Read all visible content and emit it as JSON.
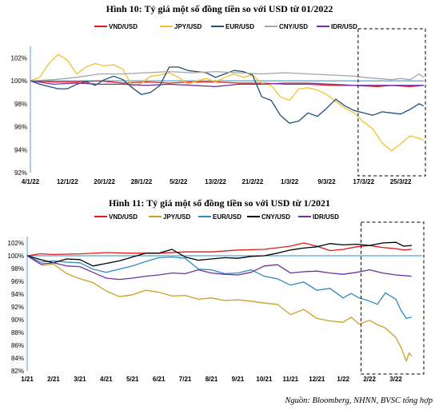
{
  "chart_data": [
    {
      "type": "line",
      "title": "Hình 10: Tỷ giá một số đồng tiền so với USD từ 01/2022",
      "x_tick_labels": [
        "4/1/22",
        "12/1/22",
        "20/1/22",
        "28/1/22",
        "5/2/22",
        "13/2/22",
        "21/2/22",
        "1/3/22",
        "9/3/22",
        "17/3/22",
        "25/3/22"
      ],
      "y_ticks": [
        "92%",
        "94%",
        "96%",
        "98%",
        "100%",
        "102%"
      ],
      "ylim": [
        92,
        103
      ],
      "reference_line": 100,
      "highlight_box": true,
      "series": [
        {
          "name": "VND/USD",
          "color": "#e31a1c",
          "x": [
            0,
            5,
            10,
            15,
            20,
            25,
            30,
            35,
            40,
            45,
            50,
            55,
            60,
            65,
            70,
            75,
            78,
            82,
            85
          ],
          "values": [
            100,
            99.9,
            99.9,
            100.0,
            99.8,
            99.9,
            99.8,
            99.9,
            99.9,
            99.8,
            99.8,
            99.7,
            99.7,
            99.6,
            99.6,
            99.5,
            99.6,
            99.5,
            99.6
          ]
        },
        {
          "name": "JPY/USD",
          "color": "#f2c12e",
          "x": [
            0,
            2,
            4,
            6,
            8,
            10,
            12,
            14,
            16,
            18,
            20,
            22,
            24,
            26,
            28,
            30,
            32,
            34,
            36,
            38,
            40,
            42,
            44,
            46,
            48,
            50,
            52,
            54,
            56,
            58,
            60,
            62,
            64,
            66,
            68,
            70,
            72,
            74,
            76,
            78,
            80,
            82,
            84,
            85
          ],
          "values": [
            100,
            100.3,
            101.5,
            102.3,
            101.8,
            100.6,
            101.2,
            101.5,
            101.3,
            101.4,
            101.0,
            99.5,
            99.8,
            100.4,
            100.5,
            100.7,
            100.3,
            99.7,
            100.0,
            100.2,
            99.9,
            100.3,
            100.6,
            100.3,
            100.5,
            99.8,
            99.6,
            98.6,
            98.3,
            99.3,
            99.4,
            99.2,
            98.8,
            98.2,
            97.6,
            97.2,
            96.4,
            95.8,
            94.6,
            93.9,
            94.5,
            95.2,
            95.0,
            94.8
          ]
        },
        {
          "name": "EUR/USD",
          "color": "#1f4e79",
          "x": [
            0,
            2,
            4,
            6,
            8,
            10,
            12,
            14,
            16,
            18,
            20,
            22,
            24,
            26,
            28,
            30,
            32,
            34,
            36,
            38,
            40,
            42,
            44,
            46,
            48,
            50,
            52,
            54,
            56,
            58,
            60,
            62,
            64,
            66,
            68,
            70,
            72,
            74,
            76,
            78,
            80,
            82,
            84,
            85
          ],
          "values": [
            100,
            99.7,
            99.5,
            99.3,
            99.3,
            99.7,
            99.9,
            99.6,
            100.1,
            100.4,
            100.1,
            99.4,
            98.8,
            99.0,
            99.6,
            101.2,
            101.2,
            100.9,
            100.8,
            100.7,
            100.3,
            100.6,
            100.9,
            100.8,
            100.5,
            98.6,
            98.3,
            97.0,
            96.3,
            96.5,
            97.2,
            96.9,
            97.6,
            98.4,
            97.8,
            97.4,
            97.2,
            97.0,
            97.3,
            97.2,
            97.1,
            97.5,
            98.0,
            97.8
          ]
        },
        {
          "name": "CNY/USD",
          "color": "#a6a6a6",
          "x": [
            0,
            5,
            10,
            15,
            20,
            25,
            30,
            35,
            40,
            45,
            50,
            55,
            60,
            65,
            70,
            72,
            75,
            78,
            80,
            82,
            84,
            85
          ],
          "values": [
            100,
            100.1,
            100.3,
            100.6,
            100.6,
            100.7,
            100.8,
            100.7,
            100.8,
            100.7,
            100.6,
            100.7,
            100.6,
            100.5,
            100.4,
            100.3,
            100.2,
            100.1,
            100.2,
            100.1,
            100.6,
            100.3
          ]
        },
        {
          "name": "IDR/USD",
          "color": "#7030a0",
          "x": [
            0,
            5,
            10,
            15,
            20,
            25,
            30,
            35,
            40,
            45,
            50,
            55,
            60,
            65,
            70,
            75,
            80,
            85
          ],
          "values": [
            100,
            99.7,
            99.8,
            99.7,
            99.7,
            99.6,
            99.7,
            99.6,
            99.5,
            99.7,
            99.7,
            99.8,
            99.8,
            99.7,
            99.6,
            99.6,
            99.6,
            99.6
          ]
        }
      ]
    },
    {
      "type": "line",
      "title": "Hình 11: Tỷ giá một số đồng tiền so với USD từ 1/2021",
      "x_tick_labels": [
        "1/21",
        "2/21",
        "3/21",
        "4/21",
        "5/21",
        "6/21",
        "7/21",
        "8/21",
        "9/21",
        "10/21",
        "11/21",
        "12/21",
        "1/22",
        "2/22",
        "3/22"
      ],
      "y_ticks": [
        "82%",
        "84%",
        "86%",
        "88%",
        "90%",
        "92%",
        "94%",
        "96%",
        "98%",
        "100%",
        "102%"
      ],
      "ylim": [
        82,
        103
      ],
      "reference_line": 100,
      "highlight_box": true,
      "series": [
        {
          "name": "VND/USD",
          "color": "#e31a1c",
          "x": [
            0,
            0.5,
            1,
            2,
            3,
            4,
            5,
            6,
            7,
            8,
            9,
            10,
            10.5,
            11,
            11.5,
            12,
            12.5,
            13,
            13.5,
            14,
            14.3,
            14.6
          ],
          "values": [
            100,
            100.3,
            100.2,
            100.3,
            100.5,
            100.4,
            100.4,
            100.6,
            100.6,
            100.9,
            101.0,
            101.5,
            102.0,
            101.5,
            100.8,
            101.0,
            101.4,
            101.6,
            101.3,
            101.1,
            100.9,
            101.0
          ]
        },
        {
          "name": "JPY/USD",
          "color": "#c9a227",
          "x": [
            0,
            0.3,
            0.6,
            1,
            1.5,
            2,
            2.5,
            3,
            3.5,
            4,
            4.5,
            5,
            5.5,
            6,
            6.5,
            7,
            7.5,
            8,
            8.5,
            9,
            9.5,
            10,
            10.5,
            11,
            11.5,
            12,
            12.3,
            12.6,
            13,
            13.3,
            13.6,
            14,
            14.2,
            14.4,
            14.5,
            14.6
          ],
          "values": [
            100,
            99.2,
            98.5,
            98.7,
            97.2,
            96.4,
            95.8,
            94.5,
            93.6,
            93.9,
            94.6,
            94.3,
            93.7,
            93.8,
            93.2,
            93.4,
            93.0,
            93.1,
            92.9,
            92.6,
            92.4,
            90.8,
            91.6,
            90.2,
            89.8,
            89.6,
            90.4,
            89.3,
            89.9,
            89.2,
            88.7,
            87.2,
            85.6,
            83.5,
            84.8,
            84.3
          ]
        },
        {
          "name": "EUR/USD",
          "color": "#2e8bc0",
          "x": [
            0,
            0.5,
            1,
            1.5,
            2,
            2.5,
            3,
            3.5,
            4,
            4.5,
            5,
            5.5,
            6,
            6.5,
            7,
            7.5,
            8,
            8.5,
            9,
            9.5,
            10,
            10.5,
            11,
            11.5,
            12,
            12.3,
            12.6,
            13,
            13.3,
            13.6,
            14,
            14.2,
            14.4,
            14.6
          ],
          "values": [
            100,
            99.0,
            99.2,
            99.0,
            98.9,
            97.9,
            97.4,
            97.9,
            98.4,
            99.1,
            99.7,
            99.8,
            99.6,
            97.9,
            97.8,
            97.2,
            97.3,
            97.8,
            96.8,
            96.4,
            95.4,
            95.9,
            94.6,
            94.9,
            93.4,
            94.1,
            93.4,
            92.9,
            92.4,
            94.2,
            93.2,
            91.4,
            90.2,
            90.4
          ]
        },
        {
          "name": "CNY/USD",
          "color": "#000000",
          "x": [
            0,
            0.5,
            1,
            1.5,
            2,
            2.5,
            3,
            3.5,
            4,
            4.5,
            5,
            5.5,
            6,
            6.5,
            7,
            7.5,
            8,
            8.5,
            9,
            9.5,
            10,
            10.5,
            11,
            11.5,
            12,
            12.5,
            13,
            13.5,
            14,
            14.3,
            14.6
          ],
          "values": [
            100,
            99.4,
            98.9,
            99.5,
            99.4,
            98.4,
            98.8,
            99.2,
            99.8,
            100.4,
            100.4,
            101.0,
            99.8,
            99.3,
            99.5,
            99.7,
            99.6,
            99.9,
            100.0,
            100.4,
            100.9,
            101.2,
            101.4,
            101.9,
            101.7,
            101.8,
            101.6,
            102.0,
            102.1,
            101.5,
            101.6
          ]
        },
        {
          "name": "IDR/USD",
          "color": "#7030a0",
          "x": [
            0,
            0.5,
            1,
            1.5,
            2,
            2.5,
            3,
            3.5,
            4,
            4.5,
            5,
            5.5,
            6,
            6.5,
            7,
            7.5,
            8,
            8.5,
            9,
            9.5,
            10,
            10.5,
            11,
            11.5,
            12,
            12.5,
            13,
            13.5,
            14,
            14.3,
            14.6
          ],
          "values": [
            100,
            98.7,
            98.9,
            98.4,
            98.3,
            97.4,
            96.5,
            96.3,
            96.5,
            96.8,
            97.0,
            97.3,
            97.2,
            97.8,
            97.3,
            97.1,
            97.0,
            97.4,
            98.4,
            98.6,
            97.3,
            97.5,
            97.6,
            97.3,
            97.1,
            97.4,
            97.8,
            97.3,
            97.0,
            96.9,
            96.8
          ]
        }
      ]
    }
  ],
  "source": "Nguồn: Bloomberg, NHNN, BVSC tổng hợp"
}
